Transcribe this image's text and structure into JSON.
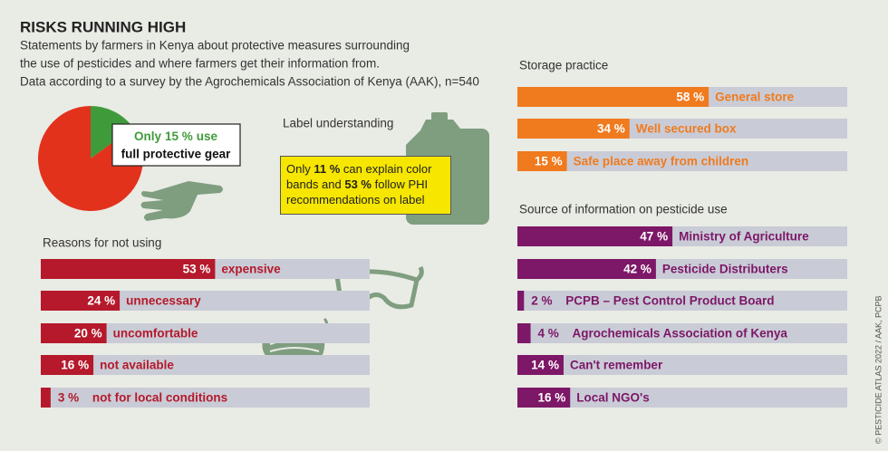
{
  "title": "RISKS RUNNING HIGH",
  "subtitle": [
    "Statements by farmers in Kenya about protective measures surrounding",
    "the use of pesticides and where farmers get their information from.",
    "Data according to a survey by the Agrochemicals Association of Kenya (AAK), n=540"
  ],
  "credit": "© PESTICIDE ATLAS 2022 / AAK, PCPB",
  "label_understanding": {
    "heading": "Label understanding",
    "parts": [
      "Only",
      "11 %",
      "can explain color bands and",
      "53 %",
      "follow PHI recommendations on label"
    ]
  },
  "chart_data": [
    {
      "type": "pie",
      "values": [
        15,
        85
      ],
      "value_labels": [
        "15 %",
        null
      ],
      "colors": [
        "#3f9b3a",
        "#e2321c"
      ],
      "annotation": {
        "before": "Only",
        "after": "use",
        "line2": "full protective gear"
      }
    },
    {
      "type": "bar",
      "title": "Reasons for not using",
      "categories": [
        "expensive",
        "unnecessary",
        "uncomfortable",
        "not available",
        "not for local conditions"
      ],
      "values": [
        53,
        24,
        20,
        16,
        3
      ],
      "value_labels": [
        "53 %",
        "24 %",
        "20 %",
        "16 %",
        "3 %"
      ],
      "color": "#b5192b",
      "track_color": "#c9ccd6",
      "xlim": [
        0,
        100
      ]
    },
    {
      "type": "bar",
      "title": "Storage practice",
      "categories": [
        "General store",
        "Well secured box",
        "Safe place away from children"
      ],
      "values": [
        58,
        34,
        15
      ],
      "value_labels": [
        "58 %",
        "34 %",
        "15 %"
      ],
      "color": "#f07a1e",
      "track_color": "#c9ccd6",
      "xlim": [
        0,
        100
      ]
    },
    {
      "type": "bar",
      "title": "Source of information on pesticide use",
      "categories": [
        "Ministry of Agriculture",
        "Pesticide Distributers",
        "PCPB – Pest Control Product Board",
        "Agrochemicals Association of Kenya",
        "Can't remember",
        "Local NGO's"
      ],
      "values": [
        47,
        42,
        2,
        4,
        14,
        16
      ],
      "value_labels": [
        "47 %",
        "42 %",
        "2 %",
        "4 %",
        "14 %",
        "16 %"
      ],
      "color": "#7d1767",
      "track_color": "#c9ccd6",
      "xlim": [
        0,
        100
      ]
    }
  ]
}
